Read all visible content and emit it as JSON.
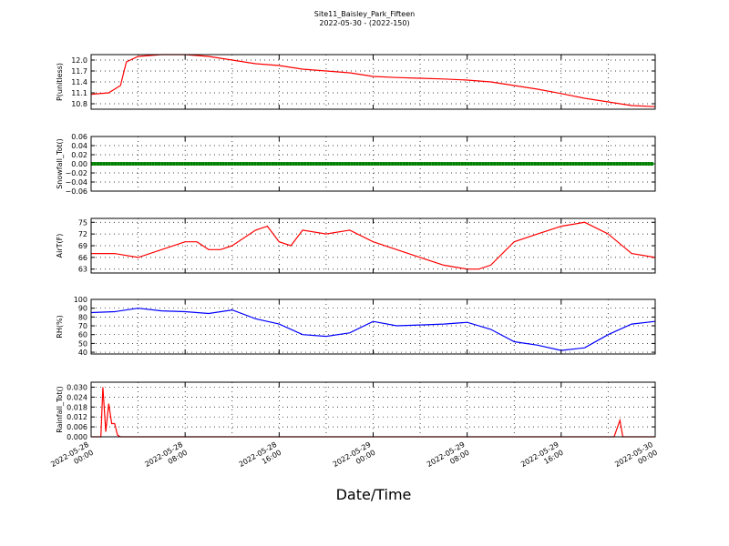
{
  "title": "Site11_Baisley_Park_Fifteen",
  "subtitle": "2022-05-30 - (2022-150)",
  "xlabel": "Date/Time",
  "x_ticks": [
    {
      "line1": "2022-05-28",
      "line2": "00:00"
    },
    {
      "line1": "2022-05-28",
      "line2": "08:00"
    },
    {
      "line1": "2022-05-28",
      "line2": "16:00"
    },
    {
      "line1": "2022-05-29",
      "line2": "00:00"
    },
    {
      "line1": "2022-05-29",
      "line2": "08:00"
    },
    {
      "line1": "2022-05-29",
      "line2": "16:00"
    },
    {
      "line1": "2022-05-30",
      "line2": "00:00"
    }
  ],
  "chart_data": [
    {
      "type": "line",
      "ylabel": "P(unitless)",
      "color": "#ff0000",
      "ylim": [
        10.65,
        12.15
      ],
      "yticks": [
        10.8,
        11.1,
        11.4,
        11.7,
        12.0
      ],
      "ytick_labels": [
        "10.8",
        "11.1",
        "11.4",
        "11.7",
        "12.0"
      ],
      "x": [
        "2022-05-28 00:00",
        "2022-05-28 01:30",
        "2022-05-28 02:30",
        "2022-05-28 03:00",
        "2022-05-28 04:00",
        "2022-05-28 06:00",
        "2022-05-28 08:00",
        "2022-05-28 10:00",
        "2022-05-28 12:00",
        "2022-05-28 14:00",
        "2022-05-28 16:00",
        "2022-05-28 18:00",
        "2022-05-28 20:00",
        "2022-05-28 22:00",
        "2022-05-29 00:00",
        "2022-05-29 02:00",
        "2022-05-29 04:00",
        "2022-05-29 06:00",
        "2022-05-29 08:00",
        "2022-05-29 10:00",
        "2022-05-29 12:00",
        "2022-05-29 14:00",
        "2022-05-29 16:00",
        "2022-05-29 18:00",
        "2022-05-29 20:00",
        "2022-05-29 22:00",
        "2022-05-30 00:00"
      ],
      "y": [
        11.06,
        11.1,
        11.3,
        11.95,
        12.1,
        12.15,
        12.15,
        12.1,
        12.0,
        11.9,
        11.85,
        11.75,
        11.7,
        11.65,
        11.55,
        11.52,
        11.5,
        11.48,
        11.45,
        11.4,
        11.3,
        11.2,
        11.08,
        10.95,
        10.85,
        10.75,
        10.72
      ]
    },
    {
      "type": "line",
      "ylabel": "Snowfall_Tot()",
      "color": "#008000",
      "marker": "square",
      "ylim": [
        -0.06,
        0.06
      ],
      "yticks": [
        -0.06,
        -0.04,
        -0.02,
        0.0,
        0.02,
        0.04,
        0.06
      ],
      "ytick_labels": [
        "−0.06",
        "−0.04",
        "−0.02",
        "0.00",
        "0.02",
        "0.04",
        "0.06"
      ],
      "x": [
        "2022-05-28 00:00",
        "2022-05-30 00:00"
      ],
      "y": [
        0.0,
        0.0
      ]
    },
    {
      "type": "line",
      "ylabel": "AirT(F)",
      "color": "#ff0000",
      "ylim": [
        62,
        76
      ],
      "yticks": [
        63,
        66,
        69,
        72,
        75
      ],
      "ytick_labels": [
        "63",
        "66",
        "69",
        "72",
        "75"
      ],
      "x": [
        "2022-05-28 00:00",
        "2022-05-28 02:00",
        "2022-05-28 04:00",
        "2022-05-28 06:00",
        "2022-05-28 08:00",
        "2022-05-28 09:00",
        "2022-05-28 10:00",
        "2022-05-28 11:00",
        "2022-05-28 12:00",
        "2022-05-28 14:00",
        "2022-05-28 15:00",
        "2022-05-28 16:00",
        "2022-05-28 17:00",
        "2022-05-28 18:00",
        "2022-05-28 20:00",
        "2022-05-28 22:00",
        "2022-05-29 00:00",
        "2022-05-29 02:00",
        "2022-05-29 04:00",
        "2022-05-29 06:00",
        "2022-05-29 08:00",
        "2022-05-29 09:00",
        "2022-05-29 10:00",
        "2022-05-29 12:00",
        "2022-05-29 14:00",
        "2022-05-29 16:00",
        "2022-05-29 18:00",
        "2022-05-29 20:00",
        "2022-05-29 22:00",
        "2022-05-30 00:00"
      ],
      "y": [
        67,
        67,
        66,
        68,
        70,
        70,
        68,
        68,
        69,
        73,
        74,
        70,
        69,
        73,
        72,
        73,
        70,
        68,
        66,
        64,
        63,
        63,
        64,
        70,
        72,
        74,
        75,
        72,
        67,
        66
      ]
    },
    {
      "type": "line",
      "ylabel": "RH(%)",
      "color": "#0000ff",
      "ylim": [
        38,
        100
      ],
      "yticks": [
        40,
        50,
        60,
        70,
        80,
        90,
        100
      ],
      "ytick_labels": [
        "40",
        "50",
        "60",
        "70",
        "80",
        "90",
        "100"
      ],
      "x": [
        "2022-05-28 00:00",
        "2022-05-28 02:00",
        "2022-05-28 04:00",
        "2022-05-28 06:00",
        "2022-05-28 08:00",
        "2022-05-28 10:00",
        "2022-05-28 12:00",
        "2022-05-28 14:00",
        "2022-05-28 16:00",
        "2022-05-28 18:00",
        "2022-05-28 20:00",
        "2022-05-28 22:00",
        "2022-05-29 00:00",
        "2022-05-29 02:00",
        "2022-05-29 04:00",
        "2022-05-29 06:00",
        "2022-05-29 08:00",
        "2022-05-29 10:00",
        "2022-05-29 12:00",
        "2022-05-29 14:00",
        "2022-05-29 16:00",
        "2022-05-29 18:00",
        "2022-05-29 20:00",
        "2022-05-29 22:00",
        "2022-05-30 00:00"
      ],
      "y": [
        85,
        86,
        90,
        87,
        86,
        84,
        88,
        78,
        72,
        60,
        58,
        62,
        75,
        70,
        71,
        72,
        74,
        66,
        52,
        48,
        42,
        45,
        60,
        72,
        75
      ]
    },
    {
      "type": "line",
      "ylabel": "Rainfall_Tot()",
      "color": "#ff0000",
      "ylim": [
        0,
        0.033
      ],
      "yticks": [
        0.0,
        0.006,
        0.012,
        0.018,
        0.024,
        0.03
      ],
      "ytick_labels": [
        "0.000",
        "0.006",
        "0.012",
        "0.018",
        "0.024",
        "0.030"
      ],
      "x": [
        "2022-05-28 00:00",
        "2022-05-28 00:50",
        "2022-05-28 01:00",
        "2022-05-28 01:15",
        "2022-05-28 01:30",
        "2022-05-28 01:45",
        "2022-05-28 02:00",
        "2022-05-28 02:15",
        "2022-05-28 02:30",
        "2022-05-29 20:30",
        "2022-05-29 21:00",
        "2022-05-29 21:15",
        "2022-05-30 00:00"
      ],
      "y": [
        0,
        0,
        0.03,
        0.003,
        0.02,
        0.008,
        0.008,
        0.001,
        0,
        0,
        0.01,
        0,
        0
      ]
    }
  ]
}
